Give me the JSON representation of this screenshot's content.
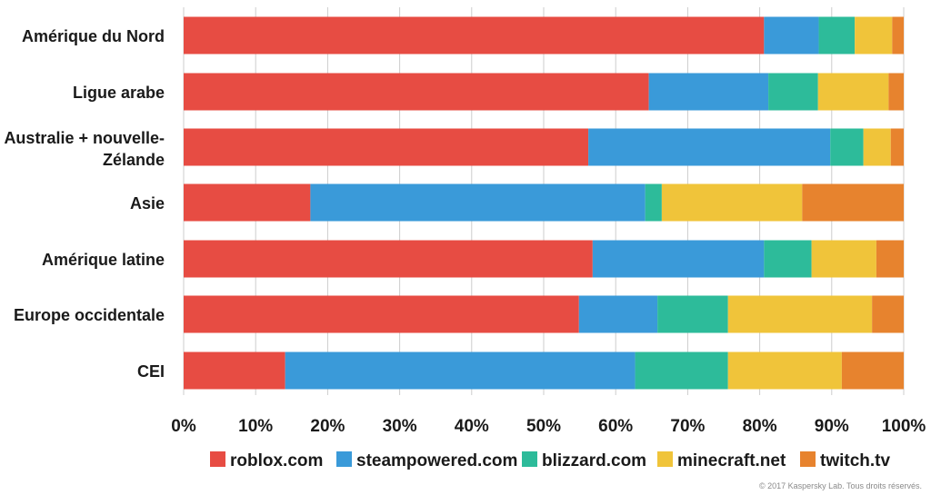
{
  "chart_data": {
    "type": "bar",
    "orientation": "horizontal",
    "stacked": true,
    "categories": [
      "Amérique du Nord",
      "Ligue arabe",
      "Australie + nouvelle-Zélande",
      "Asie",
      "Amérique latine",
      "Europe occidentale",
      "CEI"
    ],
    "series": [
      {
        "name": "roblox.com",
        "color": "#e74c43",
        "values": [
          80.6,
          64.6,
          56.2,
          17.6,
          56.8,
          54.9,
          14.1
        ]
      },
      {
        "name": "steampowered.com",
        "color": "#3a9ad9",
        "values": [
          7.6,
          16.6,
          33.6,
          46.5,
          23.8,
          10.9,
          48.6
        ]
      },
      {
        "name": "blizzard.com",
        "color": "#2dbb9a",
        "values": [
          5.0,
          6.9,
          4.6,
          2.3,
          6.6,
          9.8,
          12.9
        ]
      },
      {
        "name": "minecraft.net",
        "color": "#f0c43a",
        "values": [
          5.2,
          9.8,
          3.8,
          19.5,
          9.0,
          20.0,
          15.8
        ]
      },
      {
        "name": "twitch.tv",
        "color": "#e7832e",
        "values": [
          1.6,
          2.1,
          1.8,
          14.1,
          3.8,
          4.4,
          8.6
        ]
      }
    ],
    "xlim": [
      0,
      100
    ],
    "xticks": [
      "0%",
      "10%",
      "20%",
      "30%",
      "40%",
      "50%",
      "60%",
      "70%",
      "80%",
      "90%",
      "100%"
    ],
    "grid": true,
    "legend_position": "bottom"
  },
  "copyright": "© 2017 Kaspersky Lab. Tous droits réservés."
}
